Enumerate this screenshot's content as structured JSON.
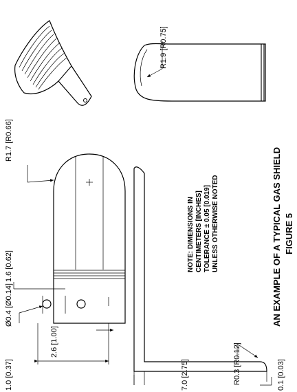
{
  "figure": {
    "title": "AN EXAMPLE OF A TYPICAL GAS SHIELD",
    "number": "FIGURE 5"
  },
  "note": {
    "line1": "NOTE: DIMENSIONS IN",
    "line2": "CENTIMETERS [INCHES]",
    "line3": "TOLERANCE ± 0.05 [0.019]",
    "line4": "UNLESS OTHERWISE NOTED"
  },
  "dimensions": {
    "hole_dia": "Ø0.4 [Ø0.14]",
    "width": "2.6 [1.00]",
    "hole_edge": "1.0 [0.37]",
    "slot_offset": "1.6 [0.62]",
    "flat_radius": "R1.7 [R0.66]",
    "top_radius": "R1.9 [R0.75]",
    "overall_length": "7.0 [2.75]",
    "bend_radius": "R0.3 [R0.12]",
    "thickness": "0.1 [0.03]"
  }
}
